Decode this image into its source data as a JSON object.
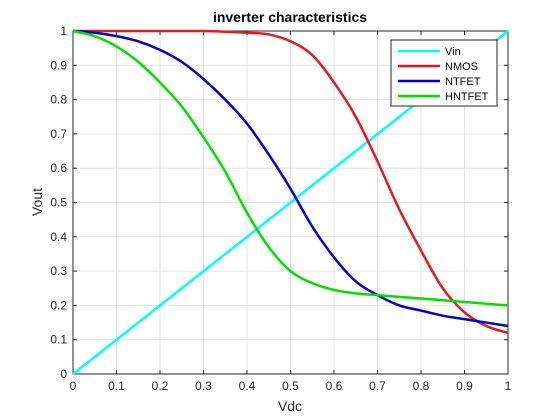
{
  "chart_data": {
    "type": "line",
    "title": "inverter characteristics",
    "xlabel": "Vdc",
    "ylabel": "Vout",
    "xlim": [
      0,
      1
    ],
    "ylim": [
      0,
      1
    ],
    "xticks": [
      0,
      0.1,
      0.2,
      0.3,
      0.4,
      0.5,
      0.6,
      0.7,
      0.8,
      0.9,
      1
    ],
    "xtick_labels": [
      "0",
      "0.1",
      "0.2",
      "0.3",
      "0.4",
      "0.5",
      "0.6",
      "0.7",
      "0.8",
      "0.9",
      "1"
    ],
    "yticks": [
      0,
      0.1,
      0.2,
      0.3,
      0.4,
      0.5,
      0.6,
      0.7,
      0.8,
      0.9,
      1
    ],
    "ytick_labels": [
      "0",
      "0.1",
      "0.2",
      "0.3",
      "0.4",
      "0.5",
      "0.6",
      "0.7",
      "0.8",
      "0.9",
      "1"
    ],
    "grid": true,
    "legend_position": "top-right",
    "x": [
      0,
      0.05,
      0.1,
      0.15,
      0.2,
      0.25,
      0.3,
      0.35,
      0.4,
      0.45,
      0.5,
      0.55,
      0.6,
      0.65,
      0.7,
      0.75,
      0.8,
      0.85,
      0.9,
      0.95,
      1
    ],
    "series": [
      {
        "name": "Vin",
        "color": "#00ffff",
        "values": [
          0,
          0.05,
          0.1,
          0.15,
          0.2,
          0.25,
          0.3,
          0.35,
          0.4,
          0.45,
          0.5,
          0.55,
          0.6,
          0.65,
          0.7,
          0.75,
          0.8,
          0.85,
          0.9,
          0.95,
          1
        ]
      },
      {
        "name": "NMOS",
        "color": "#e41a1c",
        "values": [
          1,
          1,
          1,
          1,
          1,
          1,
          1,
          0.998,
          0.995,
          0.99,
          0.97,
          0.93,
          0.85,
          0.75,
          0.62,
          0.48,
          0.36,
          0.25,
          0.18,
          0.14,
          0.12
        ]
      },
      {
        "name": "NTFET",
        "color": "#0000d0",
        "values": [
          1,
          0.995,
          0.985,
          0.97,
          0.945,
          0.91,
          0.86,
          0.8,
          0.73,
          0.64,
          0.54,
          0.43,
          0.34,
          0.27,
          0.23,
          0.2,
          0.185,
          0.17,
          0.16,
          0.15,
          0.14
        ]
      },
      {
        "name": "HNTFET",
        "color": "#00e000",
        "values": [
          1,
          0.985,
          0.955,
          0.91,
          0.85,
          0.78,
          0.69,
          0.59,
          0.47,
          0.37,
          0.3,
          0.265,
          0.245,
          0.235,
          0.23,
          0.225,
          0.22,
          0.215,
          0.21,
          0.205,
          0.2
        ]
      }
    ]
  }
}
